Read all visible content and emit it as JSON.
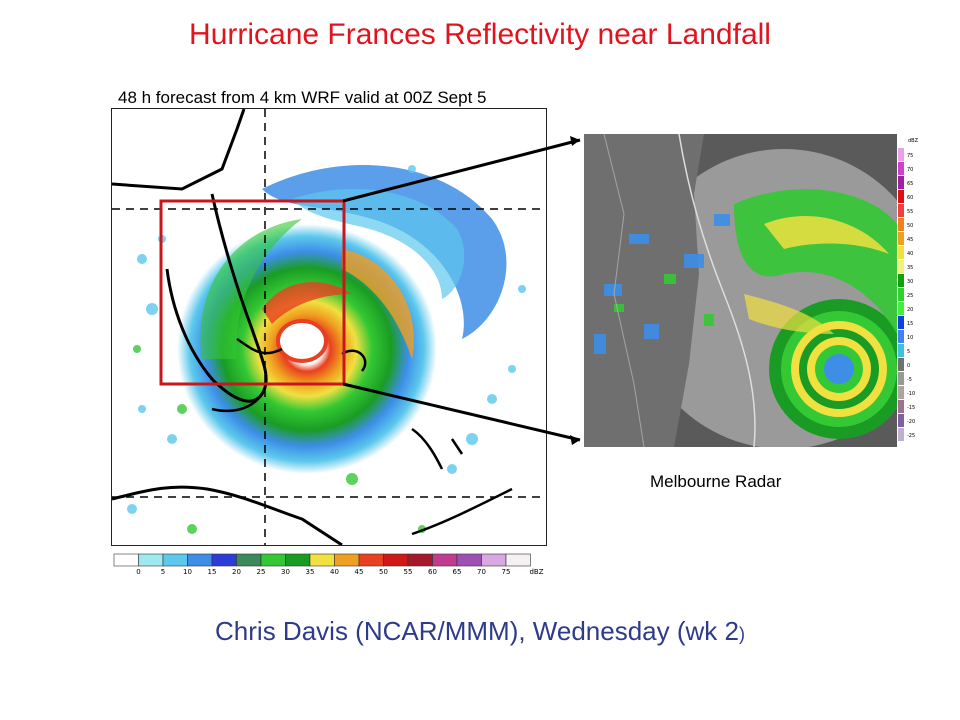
{
  "slide": {
    "title": "Hurricane Frances Reflectivity near Landfall",
    "subtitle": "48 h forecast from 4 km WRF valid at 00Z Sept 5",
    "radar_label": "Melbourne Radar",
    "footer_main": "Chris Davis (NCAR/MMM),  Wednesday (wk 2",
    "footer_paren": ")",
    "colors": {
      "title": "#e0141e",
      "footer": "#2e3b8a",
      "zoom_box": "#c8161d"
    }
  },
  "model_scale": {
    "ticks": [
      "0",
      "5",
      "10",
      "15",
      "20",
      "25",
      "30",
      "35",
      "40",
      "45",
      "50",
      "55",
      "60",
      "65",
      "70",
      "75"
    ],
    "unit": "dBZ",
    "colors": [
      "#ffffff",
      "#9ee8f0",
      "#5cc8ec",
      "#3e8ee8",
      "#2c3cd8",
      "#3a8a5a",
      "#34c834",
      "#1a9c24",
      "#f0e040",
      "#f0a020",
      "#e84020",
      "#d01818",
      "#a8182c",
      "#c03c90",
      "#9c50b4",
      "#d8a8e0",
      "#f4f0f4"
    ]
  },
  "radar_scale": {
    "unit": "dBZ",
    "ticks": [
      "75",
      "70",
      "65",
      "60",
      "55",
      "50",
      "45",
      "40",
      "35",
      "30",
      "25",
      "20",
      "15",
      "10",
      "5",
      "0",
      "-5",
      "-10",
      "-15",
      "-20",
      "-25"
    ],
    "colors": [
      "#e8a0e8",
      "#d040d0",
      "#a020a0",
      "#e01010",
      "#f04040",
      "#f08020",
      "#f0a020",
      "#f0e040",
      "#f0f080",
      "#10a010",
      "#30d030",
      "#40f040",
      "#1040e0",
      "#4080f0",
      "#40c0e0",
      "#707070",
      "#989898",
      "#b0a0a0",
      "#a07090",
      "#8060a0",
      "#c0b0d0"
    ]
  }
}
